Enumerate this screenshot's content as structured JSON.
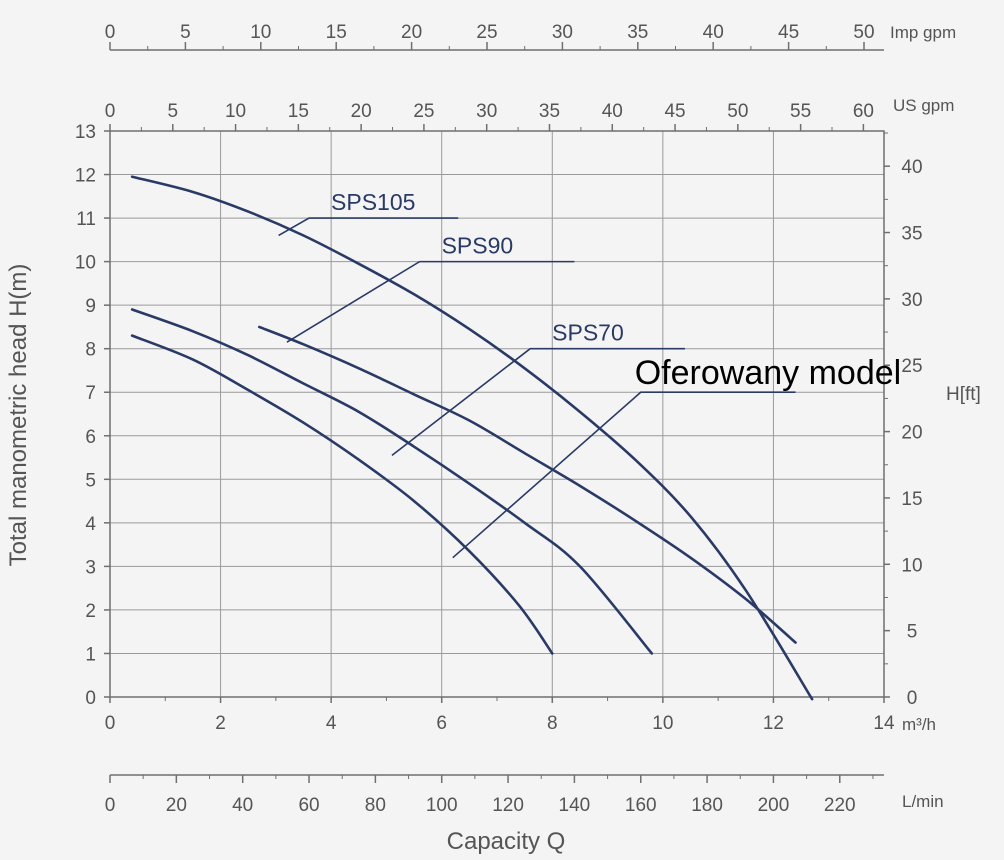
{
  "chart_data": {
    "type": "line",
    "xlabel": "Capacity Q",
    "ylabel": "Total manometric head H(m)",
    "y2label": "H[ft]",
    "x_unit_primary": "m³/h",
    "x_unit_lpm": "L/min",
    "x_unit_usgpm": "US gpm",
    "x_unit_impgpm": "Imp gpm",
    "xlim": [
      0,
      14
    ],
    "ylim": [
      0,
      13
    ],
    "x_ticks": [
      "0",
      "2",
      "4",
      "6",
      "8",
      "10",
      "12",
      "14"
    ],
    "y_ticks": [
      "0",
      "1",
      "2",
      "3",
      "4",
      "5",
      "6",
      "7",
      "8",
      "9",
      "10",
      "11",
      "12",
      "13"
    ],
    "ft_ticks": [
      "0",
      "5",
      "10",
      "15",
      "20",
      "25",
      "30",
      "35",
      "40"
    ],
    "usgpm_ticks": [
      "0",
      "5",
      "10",
      "15",
      "20",
      "25",
      "30",
      "35",
      "40",
      "45",
      "50",
      "55",
      "60"
    ],
    "impgpm_ticks": [
      "0",
      "5",
      "10",
      "15",
      "20",
      "25",
      "30",
      "35",
      "40",
      "45",
      "50"
    ],
    "lpm_ticks": [
      "0",
      "20",
      "40",
      "60",
      "80",
      "100",
      "120",
      "140",
      "160",
      "180",
      "200",
      "220"
    ],
    "grid": true,
    "series": [
      {
        "name": "SPS105",
        "color": "#2a3a66",
        "x": [
          0.4,
          1.5,
          2.5,
          3.5,
          4.5,
          5.5,
          6.5,
          7.5,
          8.5,
          9.5,
          10.5,
          11.5,
          12.7
        ],
        "y": [
          11.95,
          11.6,
          11.15,
          10.6,
          9.95,
          9.25,
          8.45,
          7.55,
          6.55,
          5.45,
          4.15,
          2.45,
          -0.05
        ]
      },
      {
        "name": "SPS90",
        "color": "#2a3a66",
        "x": [
          2.7,
          3.5,
          4.5,
          5.5,
          6.5,
          7.5,
          8.5,
          9.5,
          10.5,
          11.5,
          12.4
        ],
        "y": [
          8.5,
          8.1,
          7.55,
          6.95,
          6.35,
          5.6,
          4.85,
          4.05,
          3.2,
          2.25,
          1.25
        ]
      },
      {
        "name": "SPS70",
        "color": "#2a3a66",
        "x": [
          0.4,
          1.5,
          2.5,
          3.5,
          4.5,
          5.5,
          6.5,
          7.5,
          8.5,
          9.8
        ],
        "y": [
          8.9,
          8.4,
          7.85,
          7.2,
          6.55,
          5.75,
          4.9,
          4.0,
          3.0,
          1.0
        ]
      },
      {
        "name": "Oferowany model",
        "color": "#2a3a66",
        "x": [
          0.4,
          1.5,
          2.5,
          3.5,
          4.5,
          5.5,
          6.5,
          7.4,
          8.0
        ],
        "y": [
          8.3,
          7.75,
          7.05,
          6.3,
          5.45,
          4.5,
          3.35,
          2.1,
          1.0
        ]
      }
    ],
    "annotations": [
      {
        "text": "SPS105",
        "target": [
          3.05,
          10.6
        ],
        "line_y": 11.0,
        "line_x": [
          3.6,
          6.3
        ]
      },
      {
        "text": "SPS90",
        "target": [
          3.2,
          8.15
        ],
        "line_y": 10.0,
        "line_x": [
          5.6,
          8.4
        ]
      },
      {
        "text": "SPS70",
        "target": [
          5.1,
          5.55
        ],
        "line_y": 8.0,
        "line_x": [
          7.6,
          10.4
        ]
      },
      {
        "text": "Oferowany model",
        "target": [
          6.2,
          3.2
        ],
        "line_y": 7.0,
        "line_x": [
          9.6,
          12.4
        ]
      }
    ]
  }
}
